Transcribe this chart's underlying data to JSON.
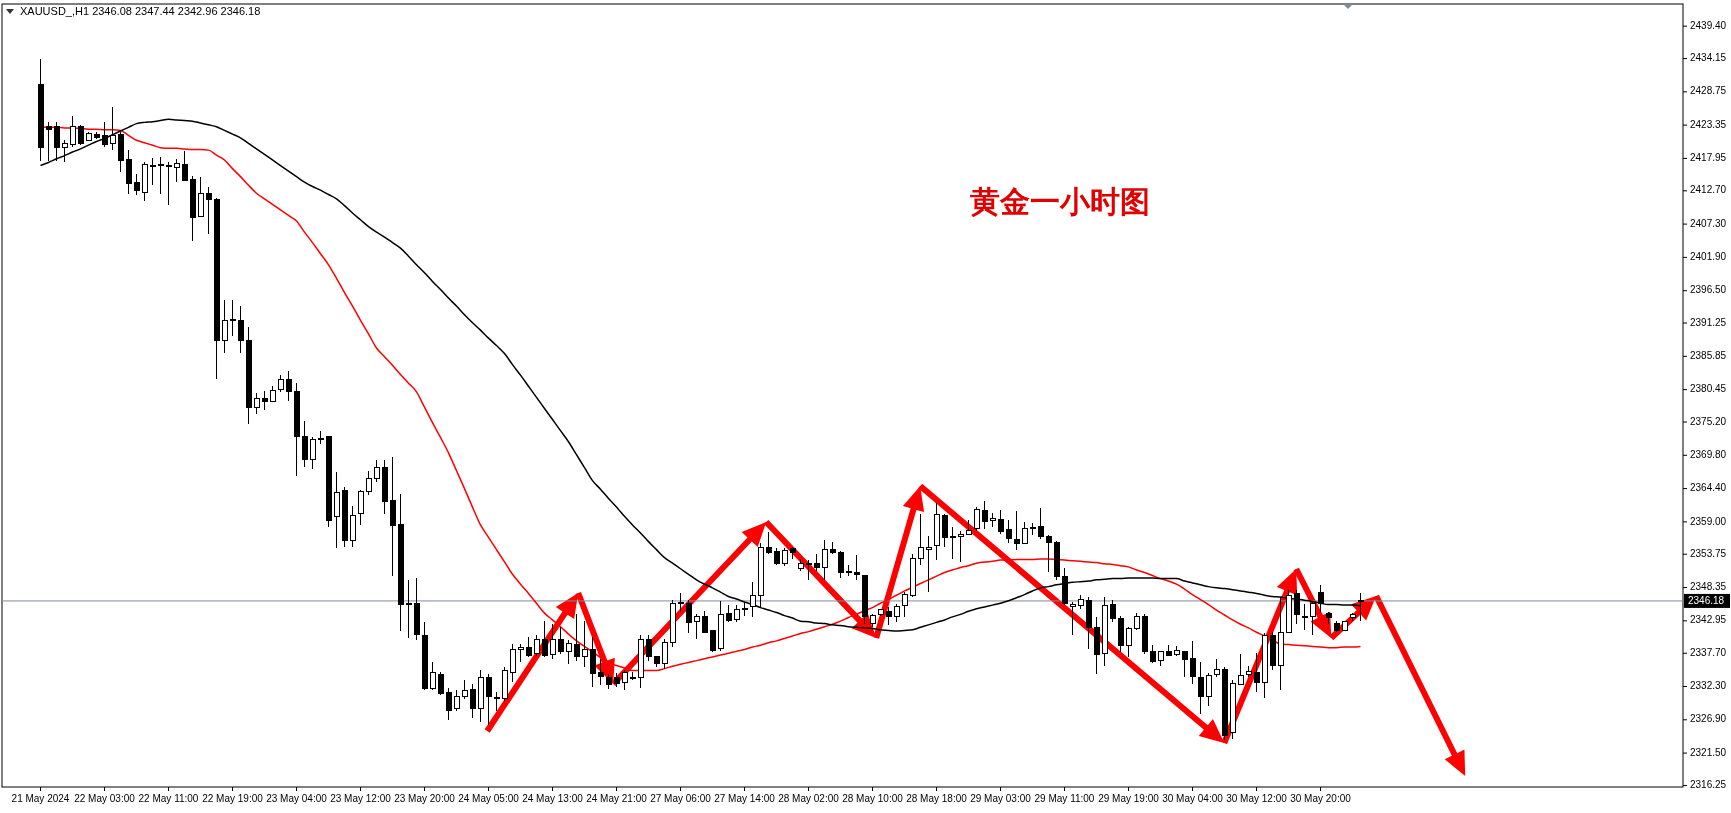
{
  "chart_data": {
    "type": "candlestick",
    "title": "XAUUSD_,H1  2346.08 2347.44 2342.96 2346.18",
    "subtitle": "黄金一小时图",
    "categories": [
      "21 May 2024",
      null,
      null,
      null,
      null,
      null,
      null,
      null,
      "22 May 03:00",
      null,
      null,
      null,
      null,
      null,
      null,
      null,
      "22 May 11:00",
      null,
      null,
      null,
      null,
      null,
      null,
      null,
      "22 May 19:00",
      null,
      null,
      null,
      null,
      null,
      null,
      null,
      "23 May 04:00",
      null,
      null,
      null,
      null,
      null,
      null,
      null,
      "23 May 12:00",
      null,
      null,
      null,
      null,
      null,
      null,
      null,
      "23 May 20:00",
      null,
      null,
      null,
      null,
      null,
      null,
      null,
      "24 May 05:00",
      null,
      null,
      null,
      null,
      null,
      null,
      null,
      "24 May 13:00",
      null,
      null,
      null,
      null,
      null,
      null,
      null,
      "24 May 21:00",
      null,
      null,
      null,
      null,
      null,
      null,
      null,
      "27 May 06:00",
      null,
      null,
      null,
      null,
      null,
      null,
      null,
      "27 May 14:00",
      null,
      null,
      null,
      null,
      null,
      null,
      null,
      "28 May 02:00",
      null,
      null,
      null,
      null,
      null,
      null,
      null,
      "28 May 10:00",
      null,
      null,
      null,
      null,
      null,
      null,
      null,
      "28 May 18:00",
      null,
      null,
      null,
      null,
      null,
      null,
      null,
      "29 May 03:00",
      null,
      null,
      null,
      null,
      null,
      null,
      null,
      "29 May 11:00",
      null,
      null,
      null,
      null,
      null,
      null,
      null,
      "29 May 19:00",
      null,
      null,
      null,
      null,
      null,
      null,
      null,
      "30 May 04:00",
      null,
      null,
      null,
      null,
      null,
      null,
      null,
      "30 May 12:00",
      null,
      null,
      null,
      null,
      null,
      null,
      null,
      "30 May 20:00",
      null,
      null,
      null,
      null,
      null
    ],
    "ohlc": [
      [
        2429.9,
        2434.0,
        2417.6,
        2419.8
      ],
      [
        2423.1,
        2423.8,
        2417.6,
        2422.7
      ],
      [
        2423.1,
        2423.8,
        2417.6,
        2419.8
      ],
      [
        2419.8,
        2420.9,
        2417.3,
        2420.3
      ],
      [
        2420.2,
        2424.9,
        2419.8,
        2423.1
      ],
      [
        2423.2,
        2423.4,
        2420.2,
        2420.3
      ],
      [
        2420.9,
        2422.3,
        2420.7,
        2422.0
      ],
      [
        2421.8,
        2422.3,
        2421.1,
        2421.4
      ],
      [
        2421.6,
        2423.8,
        2419.8,
        2420.2
      ],
      [
        2420.4,
        2426.3,
        2419.4,
        2421.6
      ],
      [
        2421.8,
        2422.3,
        2415.7,
        2417.6
      ],
      [
        2417.8,
        2419.4,
        2412.2,
        2413.9
      ],
      [
        2414.0,
        2415.4,
        2412.0,
        2412.7
      ],
      [
        2412.5,
        2417.3,
        2411.1,
        2417.0
      ],
      [
        2416.8,
        2418.0,
        2413.6,
        2416.8
      ],
      [
        2417.0,
        2418.2,
        2412.2,
        2416.9
      ],
      [
        2416.8,
        2417.3,
        2410.4,
        2416.7
      ],
      [
        2416.5,
        2417.8,
        2414.1,
        2417.1
      ],
      [
        2416.9,
        2419.1,
        2414.4,
        2414.4
      ],
      [
        2414.6,
        2415.1,
        2404.6,
        2408.3
      ],
      [
        2408.6,
        2414.9,
        2408.6,
        2412.2
      ],
      [
        2412.2,
        2413.3,
        2405.7,
        2411.3
      ],
      [
        2411.3,
        2411.5,
        2382.1,
        2388.4
      ],
      [
        2388.4,
        2395.0,
        2386.4,
        2391.7
      ],
      [
        2391.8,
        2395.0,
        2389.2,
        2391.9
      ],
      [
        2391.7,
        2394.0,
        2386.4,
        2388.4
      ],
      [
        2388.4,
        2390.6,
        2374.8,
        2377.6
      ],
      [
        2377.6,
        2379.9,
        2376.5,
        2379.0
      ],
      [
        2379.0,
        2380.3,
        2377.2,
        2378.6
      ],
      [
        2378.6,
        2381.0,
        2378.4,
        2380.3
      ],
      [
        2380.4,
        2382.8,
        2380.1,
        2382.1
      ],
      [
        2382.1,
        2383.5,
        2378.6,
        2380.1
      ],
      [
        2380.1,
        2381.5,
        2366.5,
        2372.9
      ],
      [
        2372.9,
        2375.4,
        2367.9,
        2369.2
      ],
      [
        2369.2,
        2372.8,
        2367.6,
        2372.4
      ],
      [
        2372.6,
        2373.7,
        2371.6,
        2372.5
      ],
      [
        2372.8,
        2373.0,
        2358.1,
        2359.2
      ],
      [
        2359.8,
        2367.1,
        2354.7,
        2363.8
      ],
      [
        2364.1,
        2364.7,
        2354.9,
        2356.0
      ],
      [
        2356.0,
        2361.5,
        2355.0,
        2360.1
      ],
      [
        2360.3,
        2364.1,
        2358.5,
        2363.9
      ],
      [
        2363.9,
        2367.3,
        2363.4,
        2366.1
      ],
      [
        2366.1,
        2369.0,
        2365.4,
        2367.8
      ],
      [
        2367.9,
        2369.0,
        2360.3,
        2362.3
      ],
      [
        2362.5,
        2369.6,
        2350.3,
        2358.4
      ],
      [
        2358.5,
        2363.6,
        2341.3,
        2345.6
      ],
      [
        2345.7,
        2349.6,
        2340.2,
        2345.6
      ],
      [
        2345.8,
        2349.9,
        2339.9,
        2340.7
      ],
      [
        2340.6,
        2342.7,
        2331.7,
        2331.9
      ],
      [
        2331.9,
        2336.2,
        2331.7,
        2334.6
      ],
      [
        2334.3,
        2334.6,
        2330.9,
        2331.1
      ],
      [
        2331.3,
        2332.0,
        2326.8,
        2328.4
      ],
      [
        2328.8,
        2331.7,
        2328.4,
        2330.7
      ],
      [
        2330.7,
        2333.3,
        2330.2,
        2331.6
      ],
      [
        2331.8,
        2332.7,
        2327.2,
        2328.8
      ],
      [
        2328.8,
        2335.0,
        2326.5,
        2333.8
      ],
      [
        2333.7,
        2334.4,
        2326.0,
        2330.6
      ],
      [
        2330.5,
        2331.4,
        2328.4,
        2330.5
      ],
      [
        2330.3,
        2335.4,
        2330.0,
        2334.9
      ],
      [
        2334.6,
        2339.2,
        2333.0,
        2338.3
      ],
      [
        2338.3,
        2339.2,
        2336.3,
        2338.6
      ],
      [
        2338.6,
        2340.3,
        2337.1,
        2337.4
      ],
      [
        2337.6,
        2340.7,
        2337.3,
        2339.9
      ],
      [
        2339.9,
        2343.0,
        2337.1,
        2337.4
      ],
      [
        2337.5,
        2342.5,
        2336.8,
        2340.0
      ],
      [
        2340.0,
        2341.9,
        2337.6,
        2337.9
      ],
      [
        2338.0,
        2339.8,
        2336.0,
        2339.2
      ],
      [
        2339.1,
        2344.1,
        2336.5,
        2337.2
      ],
      [
        2337.2,
        2343.0,
        2335.4,
        2338.3
      ],
      [
        2338.3,
        2340.3,
        2332.3,
        2334.4
      ],
      [
        2334.5,
        2336.8,
        2332.6,
        2334.0
      ],
      [
        2333.8,
        2334.4,
        2331.9,
        2332.6
      ],
      [
        2333.7,
        2334.5,
        2332.2,
        2332.8
      ],
      [
        2333.0,
        2334.9,
        2331.7,
        2334.6
      ],
      [
        2333.7,
        2334.6,
        2333.3,
        2333.7
      ],
      [
        2333.8,
        2340.6,
        2332.1,
        2340.0
      ],
      [
        2340.0,
        2340.6,
        2336.5,
        2337.1
      ],
      [
        2337.1,
        2337.3,
        2335.4,
        2336.0
      ],
      [
        2336.0,
        2340.0,
        2335.2,
        2339.4
      ],
      [
        2339.4,
        2346.3,
        2338.7,
        2345.8
      ],
      [
        2345.9,
        2347.4,
        2344.4,
        2345.9
      ],
      [
        2345.8,
        2346.3,
        2340.9,
        2342.7
      ],
      [
        2342.9,
        2344.1,
        2340.0,
        2343.6
      ],
      [
        2343.6,
        2344.5,
        2340.9,
        2341.1
      ],
      [
        2341.4,
        2341.4,
        2337.9,
        2338.1
      ],
      [
        2338.4,
        2346.2,
        2338.1,
        2343.9
      ],
      [
        2344.1,
        2345.6,
        2342.7,
        2343.0
      ],
      [
        2343.1,
        2345.5,
        2342.7,
        2344.8
      ],
      [
        2344.9,
        2346.0,
        2343.8,
        2344.9
      ],
      [
        2345.2,
        2349.2,
        2343.6,
        2347.0
      ],
      [
        2347.0,
        2355.5,
        2345.2,
        2354.8
      ],
      [
        2354.8,
        2357.4,
        2353.8,
        2354.1
      ],
      [
        2354.2,
        2354.7,
        2352.0,
        2352.2
      ],
      [
        2352.2,
        2354.7,
        2351.8,
        2354.4
      ],
      [
        2354.7,
        2354.9,
        2353.0,
        2354.1
      ],
      [
        2351.4,
        2353.0,
        2351.1,
        2352.3
      ],
      [
        2352.2,
        2352.8,
        2349.5,
        2352.1
      ],
      [
        2352.2,
        2353.8,
        2351.1,
        2351.6
      ],
      [
        2351.6,
        2356.1,
        2349.5,
        2354.5
      ],
      [
        2354.5,
        2355.7,
        2353.8,
        2354.0
      ],
      [
        2354.1,
        2354.3,
        2349.9,
        2350.8
      ],
      [
        2350.9,
        2352.0,
        2350.3,
        2350.9
      ],
      [
        2350.8,
        2353.6,
        2349.5,
        2350.4
      ],
      [
        2350.3,
        2350.3,
        2342.5,
        2343.6
      ],
      [
        2342.5,
        2344.1,
        2341.9,
        2343.8
      ],
      [
        2344.0,
        2344.9,
        2343.8,
        2344.8
      ],
      [
        2344.5,
        2345.2,
        2342.2,
        2343.6
      ],
      [
        2343.6,
        2345.7,
        2342.7,
        2345.3
      ],
      [
        2345.5,
        2347.6,
        2343.6,
        2347.2
      ],
      [
        2347.1,
        2353.8,
        2346.8,
        2353.0
      ],
      [
        2353.0,
        2360.3,
        2352.0,
        2354.8
      ],
      [
        2354.5,
        2356.7,
        2347.6,
        2354.9
      ],
      [
        2355.1,
        2362.0,
        2352.8,
        2360.2
      ],
      [
        2360.1,
        2360.3,
        2354.9,
        2356.4
      ],
      [
        2356.7,
        2358.2,
        2353.0,
        2356.7
      ],
      [
        2356.7,
        2357.6,
        2352.5,
        2357.0
      ],
      [
        2357.0,
        2359.3,
        2356.8,
        2357.6
      ],
      [
        2357.9,
        2361.4,
        2357.6,
        2361.0
      ],
      [
        2360.9,
        2362.4,
        2357.9,
        2359.0
      ],
      [
        2359.2,
        2360.5,
        2358.2,
        2359.5
      ],
      [
        2359.4,
        2360.9,
        2357.1,
        2357.5
      ],
      [
        2357.7,
        2359.3,
        2355.5,
        2356.3
      ],
      [
        2356.1,
        2360.7,
        2354.4,
        2355.5
      ],
      [
        2355.5,
        2359.0,
        2355.4,
        2357.9
      ],
      [
        2358.1,
        2358.8,
        2356.8,
        2358.0
      ],
      [
        2358.3,
        2361.3,
        2356.3,
        2356.6
      ],
      [
        2356.7,
        2356.8,
        2350.9,
        2355.6
      ],
      [
        2355.6,
        2355.9,
        2349.6,
        2350.1
      ],
      [
        2350.2,
        2351.6,
        2345.5,
        2345.7
      ],
      [
        2345.3,
        2346.0,
        2340.7,
        2345.6
      ],
      [
        2345.5,
        2347.1,
        2344.9,
        2346.4
      ],
      [
        2346.3,
        2346.8,
        2338.4,
        2341.9
      ],
      [
        2341.9,
        2343.6,
        2334.4,
        2337.5
      ],
      [
        2337.6,
        2346.8,
        2335.7,
        2345.5
      ],
      [
        2345.6,
        2346.3,
        2342.7,
        2343.3
      ],
      [
        2343.4,
        2343.8,
        2337.9,
        2339.0
      ],
      [
        2339.0,
        2341.9,
        2337.1,
        2341.7
      ],
      [
        2341.7,
        2344.2,
        2341.4,
        2343.6
      ],
      [
        2343.6,
        2344.1,
        2337.6,
        2338.0
      ],
      [
        2338.0,
        2339.1,
        2336.1,
        2336.3
      ],
      [
        2336.5,
        2338.1,
        2335.7,
        2337.9
      ],
      [
        2338.0,
        2339.0,
        2337.2,
        2337.4
      ],
      [
        2337.5,
        2338.8,
        2337.3,
        2338.1
      ],
      [
        2338.0,
        2338.1,
        2333.8,
        2336.6
      ],
      [
        2336.8,
        2339.6,
        2332.7,
        2333.9
      ],
      [
        2333.7,
        2336.3,
        2327.9,
        2330.7
      ],
      [
        2330.7,
        2334.5,
        2329.1,
        2334.1
      ],
      [
        2334.2,
        2336.8,
        2333.9,
        2335.0
      ],
      [
        2335.0,
        2335.4,
        2323.6,
        2324.3
      ],
      [
        2324.9,
        2333.3,
        2323.8,
        2332.8
      ],
      [
        2332.7,
        2337.6,
        2332.5,
        2334.1
      ],
      [
        2334.3,
        2335.7,
        2333.8,
        2334.8
      ],
      [
        2334.6,
        2337.7,
        2331.4,
        2333.0
      ],
      [
        2333.0,
        2340.9,
        2330.5,
        2340.6
      ],
      [
        2340.6,
        2341.1,
        2334.9,
        2335.7
      ],
      [
        2335.7,
        2346.8,
        2331.8,
        2341.1
      ],
      [
        2341.1,
        2347.9,
        2340.9,
        2347.1
      ],
      [
        2347.4,
        2347.9,
        2342.5,
        2344.0
      ],
      [
        2343.7,
        2345.7,
        2341.4,
        2343.7
      ],
      [
        2343.7,
        2346.0,
        2340.7,
        2345.7
      ],
      [
        2347.6,
        2348.7,
        2344.4,
        2345.7
      ],
      [
        2344.2,
        2344.4,
        2342.5,
        2343.5
      ],
      [
        2342.6,
        2343.0,
        2341.1,
        2341.4
      ],
      [
        2341.4,
        2343.0,
        2341.3,
        2342.8
      ],
      [
        2343.5,
        2344.2,
        2343.0,
        2343.9
      ],
      [
        2346.08,
        2347.44,
        2342.96,
        2346.18
      ]
    ],
    "series": [
      {
        "type": "line",
        "color": "#ff0000",
        "values": [
          2423.1,
          2423.0,
          2423.0,
          2422.9,
          2422.9,
          2422.8,
          2422.7,
          2422.7,
          2422.6,
          2422.6,
          2422.5,
          2421.7,
          2420.9,
          2420.5,
          2420.1,
          2419.7,
          2419.6,
          2419.6,
          2419.5,
          2419.4,
          2419.4,
          2419.3,
          2418.5,
          2417.7,
          2416.3,
          2415.0,
          2413.6,
          2412.3,
          2411.4,
          2410.5,
          2409.6,
          2408.7,
          2407.8,
          2406.0,
          2404.3,
          2402.5,
          2400.7,
          2398.5,
          2396.2,
          2394.0,
          2391.7,
          2389.5,
          2387.2,
          2385.8,
          2384.4,
          2382.9,
          2381.5,
          2380.1,
          2377.6,
          2375.1,
          2372.7,
          2370.2,
          2367.3,
          2364.4,
          2361.4,
          2358.5,
          2356.5,
          2354.5,
          2352.5,
          2350.5,
          2348.9,
          2347.4,
          2345.8,
          2344.2,
          2343.1,
          2342.0,
          2340.8,
          2339.7,
          2338.8,
          2337.9,
          2337.0,
          2336.1,
          2335.7,
          2335.3,
          2334.9,
          2334.9,
          2334.9,
          2334.9,
          2335.2,
          2335.6,
          2335.9,
          2336.2,
          2336.5,
          2336.8,
          2337.1,
          2337.4,
          2337.7,
          2338.0,
          2338.3,
          2338.7,
          2339.0,
          2339.4,
          2339.7,
          2340.1,
          2340.5,
          2340.9,
          2341.2,
          2341.6,
          2342.0,
          2342.4,
          2342.9,
          2343.5,
          2344.0,
          2344.6,
          2345.1,
          2345.8,
          2346.4,
          2347.1,
          2347.8,
          2348.4,
          2349.0,
          2349.6,
          2350.2,
          2350.8,
          2351.2,
          2351.6,
          2351.9,
          2352.3,
          2352.5,
          2352.6,
          2352.8,
          2352.8,
          2352.9,
          2352.9,
          2352.9,
          2353.0,
          2353.0,
          2352.9,
          2352.8,
          2352.7,
          2352.6,
          2352.5,
          2352.4,
          2352.2,
          2352.1,
          2351.9,
          2351.7,
          2351.2,
          2350.8,
          2350.3,
          2349.8,
          2349.4,
          2348.9,
          2348.1,
          2347.2,
          2346.4,
          2345.6,
          2344.7,
          2343.9,
          2343.1,
          2342.4,
          2341.8,
          2341.1,
          2340.5,
          2339.8,
          2339.2,
          2339.1,
          2339.0,
          2338.9,
          2338.8,
          2338.7,
          2338.6,
          2338.6,
          2338.7,
          2338.7,
          2338.8
        ]
      },
      {
        "type": "line",
        "color": "#000000",
        "values": [
          2416.8,
          2417.3,
          2417.9,
          2418.4,
          2419.0,
          2419.5,
          2420.1,
          2420.7,
          2421.2,
          2421.8,
          2422.4,
          2423.0,
          2423.6,
          2423.8,
          2423.9,
          2424.1,
          2424.3,
          2424.2,
          2424.1,
          2424.0,
          2423.7,
          2423.4,
          2423.1,
          2422.5,
          2421.9,
          2421.3,
          2420.4,
          2419.5,
          2418.6,
          2417.7,
          2416.8,
          2415.9,
          2415.0,
          2414.1,
          2413.4,
          2412.8,
          2412.1,
          2411.4,
          2410.3,
          2409.1,
          2408.0,
          2406.9,
          2406.0,
          2405.2,
          2404.3,
          2403.4,
          2402.1,
          2400.7,
          2399.4,
          2398.0,
          2396.7,
          2395.3,
          2394.0,
          2392.6,
          2391.3,
          2390.1,
          2388.8,
          2387.6,
          2386.3,
          2384.5,
          2382.8,
          2381.0,
          2379.2,
          2377.4,
          2375.6,
          2373.8,
          2372.0,
          2369.9,
          2367.8,
          2365.7,
          2364.3,
          2362.8,
          2361.4,
          2359.9,
          2358.5,
          2357.2,
          2355.8,
          2354.5,
          2353.2,
          2352.3,
          2351.4,
          2350.5,
          2349.6,
          2348.9,
          2348.3,
          2347.6,
          2346.9,
          2346.5,
          2346.0,
          2345.6,
          2345.1,
          2344.7,
          2344.3,
          2343.8,
          2343.4,
          2342.9,
          2342.8,
          2342.6,
          2342.5,
          2342.3,
          2342.2,
          2342.0,
          2341.9,
          2341.8,
          2341.7,
          2341.5,
          2341.4,
          2341.3,
          2341.4,
          2341.5,
          2341.9,
          2342.3,
          2342.7,
          2343.1,
          2343.6,
          2344.0,
          2344.5,
          2344.9,
          2345.2,
          2345.5,
          2345.8,
          2346.2,
          2346.7,
          2347.2,
          2347.8,
          2348.3,
          2348.5,
          2348.8,
          2349.0,
          2349.2,
          2349.3,
          2349.4,
          2349.6,
          2349.7,
          2349.8,
          2349.8,
          2349.9,
          2349.9,
          2349.9,
          2349.9,
          2349.8,
          2349.8,
          2349.8,
          2349.4,
          2349.1,
          2348.8,
          2348.5,
          2348.3,
          2348.2,
          2348.0,
          2347.8,
          2347.6,
          2347.4,
          2347.1,
          2346.9,
          2346.8,
          2346.6,
          2346.5,
          2346.3,
          2346.1,
          2345.8,
          2345.6,
          2345.6,
          2345.5,
          2345.5,
          2345.4
        ]
      }
    ],
    "ylim": [
      2316.0,
      2443.0
    ],
    "yticks": [
      {
        "value": 2439.4,
        "label": "2439.40"
      },
      {
        "value": 2434.15,
        "label": "2434.15"
      },
      {
        "value": 2428.75,
        "label": "2428.75"
      },
      {
        "value": 2423.35,
        "label": "2423.35"
      },
      {
        "value": 2417.95,
        "label": "2417.95"
      },
      {
        "value": 2412.7,
        "label": "2412.70"
      },
      {
        "value": 2407.3,
        "label": "2407.30"
      },
      {
        "value": 2401.9,
        "label": "2401.90"
      },
      {
        "value": 2396.5,
        "label": "2396.50"
      },
      {
        "value": 2391.25,
        "label": "2391.25"
      },
      {
        "value": 2385.85,
        "label": "2385.85"
      },
      {
        "value": 2380.45,
        "label": "2380.45"
      },
      {
        "value": 2375.2,
        "label": "2375.20"
      },
      {
        "value": 2369.8,
        "label": "2369.80"
      },
      {
        "value": 2364.4,
        "label": "2364.40"
      },
      {
        "value": 2359.0,
        "label": "2359.00"
      },
      {
        "value": 2353.75,
        "label": "2353.75"
      },
      {
        "value": 2348.35,
        "label": "2348.35"
      },
      {
        "value": 2342.95,
        "label": "2342.95"
      },
      {
        "value": 2337.7,
        "label": "2337.70"
      },
      {
        "value": 2332.3,
        "label": "2332.30"
      },
      {
        "value": 2326.9,
        "label": "2326.90"
      },
      {
        "value": 2321.5,
        "label": "2321.50"
      },
      {
        "value": 2316.25,
        "label": "2316.25"
      }
    ],
    "ref_lines": [
      {
        "axis": "y",
        "value": 2346.18,
        "label": "2346.18",
        "color": "#7f8c9a"
      }
    ]
  }
}
